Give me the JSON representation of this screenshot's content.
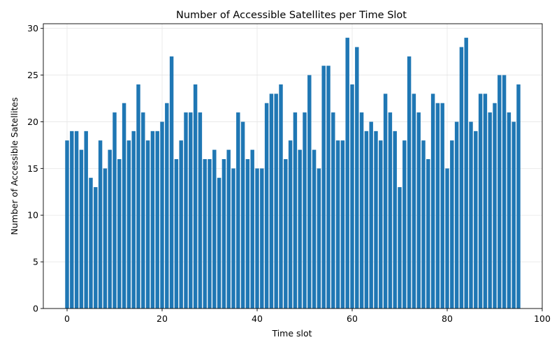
{
  "chart_data": {
    "type": "bar",
    "title": "Number of Accessible Satellites per Time Slot",
    "xlabel": "Time slot",
    "ylabel": "Number of Accessible Satellites",
    "xlim": [
      -5,
      100
    ],
    "ylim": [
      0,
      30.5
    ],
    "xticks": [
      0,
      20,
      40,
      60,
      80,
      100
    ],
    "yticks": [
      0,
      5,
      10,
      15,
      20,
      25,
      30
    ],
    "grid": true,
    "bar_color": "#1f77b4",
    "x": [
      0,
      1,
      2,
      3,
      4,
      5,
      6,
      7,
      8,
      9,
      10,
      11,
      12,
      13,
      14,
      15,
      16,
      17,
      18,
      19,
      20,
      21,
      22,
      23,
      24,
      25,
      26,
      27,
      28,
      29,
      30,
      31,
      32,
      33,
      34,
      35,
      36,
      37,
      38,
      39,
      40,
      41,
      42,
      43,
      44,
      45,
      46,
      47,
      48,
      49,
      50,
      51,
      52,
      53,
      54,
      55,
      56,
      57,
      58,
      59,
      60,
      61,
      62,
      63,
      64,
      65,
      66,
      67,
      68,
      69,
      70,
      71,
      72,
      73,
      74,
      75,
      76,
      77,
      78,
      79,
      80,
      81,
      82,
      83,
      84,
      85,
      86,
      87,
      88,
      89,
      90,
      91,
      92,
      93,
      94,
      95
    ],
    "values": [
      18,
      19,
      19,
      17,
      19,
      14,
      13,
      18,
      15,
      17,
      21,
      16,
      22,
      18,
      19,
      24,
      21,
      18,
      19,
      19,
      20,
      22,
      27,
      16,
      18,
      21,
      21,
      24,
      21,
      16,
      16,
      17,
      14,
      16,
      17,
      15,
      21,
      20,
      16,
      17,
      15,
      15,
      22,
      23,
      23,
      24,
      16,
      18,
      21,
      17,
      21,
      25,
      17,
      15,
      26,
      26,
      21,
      18,
      18,
      29,
      24,
      28,
      21,
      19,
      20,
      19,
      18,
      23,
      21,
      19,
      13,
      18,
      27,
      23,
      21,
      18,
      16,
      23,
      22,
      22,
      15,
      18,
      20,
      28,
      29,
      20,
      19,
      23,
      23,
      21,
      22,
      25,
      25,
      21,
      20,
      24
    ]
  }
}
